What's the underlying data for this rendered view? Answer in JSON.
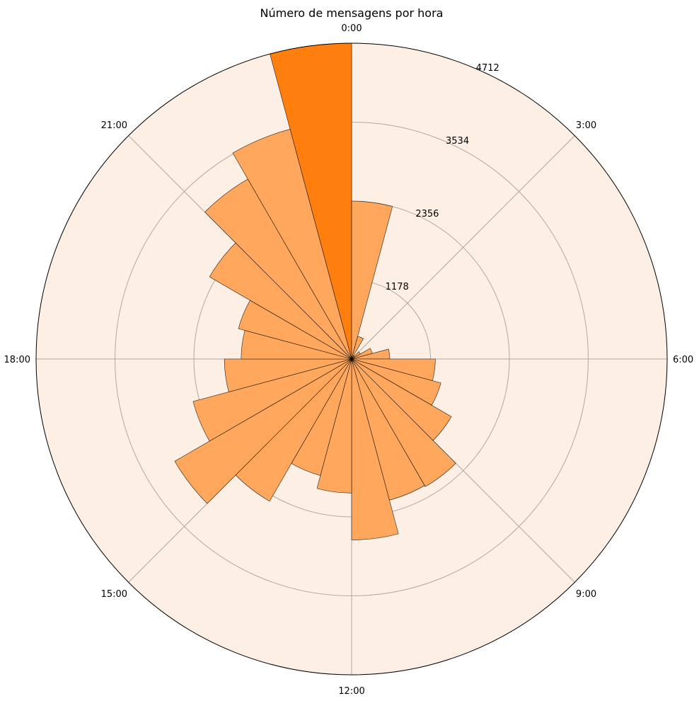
{
  "chart_data": {
    "type": "bar",
    "projection": "polar",
    "title": "Número de mensagens por hora",
    "hours": [
      0,
      1,
      2,
      3,
      4,
      5,
      6,
      7,
      8,
      9,
      10,
      11,
      12,
      13,
      14,
      15,
      16,
      17,
      18,
      19,
      20,
      21,
      22,
      23
    ],
    "values": [
      4712,
      2356,
      350,
      60,
      150,
      320,
      570,
      1250,
      1380,
      1720,
      2200,
      2180,
      2700,
      2000,
      1800,
      2450,
      3050,
      2450,
      1900,
      1650,
      1750,
      2450,
      3100,
      3550
    ],
    "highlight_hour": 0,
    "colors": {
      "background": "#fdefe4",
      "bar": "#ffa75c",
      "highlight": "#ff7f0e",
      "grid": "#b0a8a4",
      "edge": "#000000"
    },
    "radial_ticks": [
      "1178",
      "2356",
      "3534",
      "4712"
    ],
    "radial_tick_values": [
      1178,
      2356,
      3534,
      4712
    ],
    "angle_labels": [
      "0:00",
      "3:00",
      "6:00",
      "9:00",
      "12:00",
      "15:00",
      "18:00",
      "21:00"
    ],
    "angle_label_hours": [
      0,
      3,
      6,
      9,
      12,
      15,
      18,
      21
    ],
    "rmax": 4712,
    "grid": true
  }
}
